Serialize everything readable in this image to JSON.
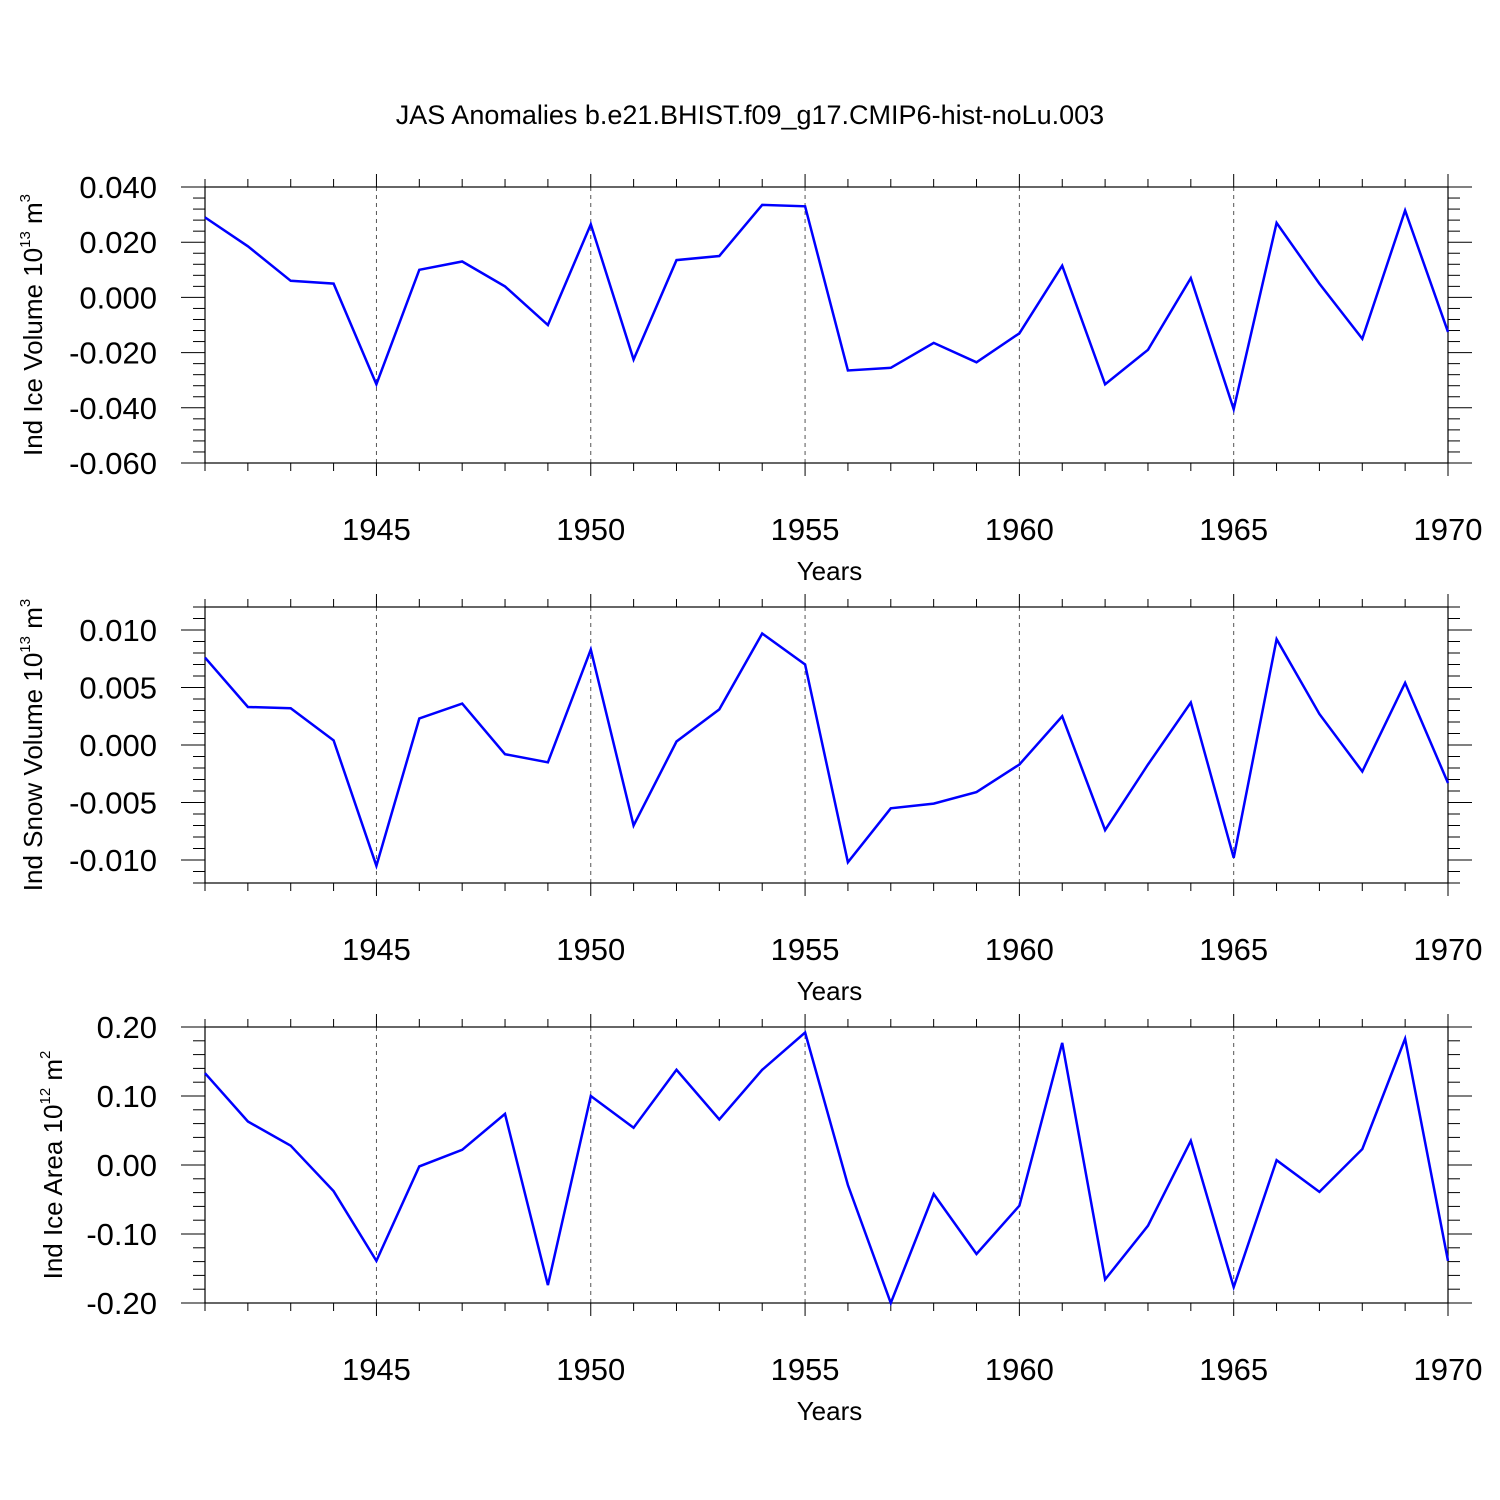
{
  "title": "JAS Anomalies b.e21.BHIST.f09_g17.CMIP6-hist-noLu.003",
  "colors": {
    "line": "#0000ff",
    "axis": "#000000",
    "grid": "#555555"
  },
  "chart_data": [
    {
      "type": "line",
      "ylabel": "Ind Ice Volume 10",
      "ylabel_exp": "13",
      "ylabel_unit": " m",
      "ylabel_unit_exp": "3",
      "xlabel": "Years",
      "xlim": [
        1941,
        1970
      ],
      "ylim": [
        -0.06,
        0.04
      ],
      "yticks": [
        0.04,
        0.02,
        0.0,
        -0.02,
        -0.04,
        -0.06
      ],
      "ytick_labels": [
        "0.040",
        "0.020",
        "0.000",
        "-0.020",
        "-0.040",
        "-0.060"
      ],
      "xticks": [
        1945,
        1950,
        1955,
        1960,
        1965,
        1970
      ],
      "xtick_labels": [
        "1945",
        "1950",
        "1955",
        "1960",
        "1965",
        "1970"
      ],
      "x": [
        1941,
        1942,
        1943,
        1944,
        1945,
        1946,
        1947,
        1948,
        1949,
        1950,
        1951,
        1952,
        1953,
        1954,
        1955,
        1956,
        1957,
        1958,
        1959,
        1960,
        1961,
        1962,
        1963,
        1964,
        1965,
        1966,
        1967,
        1968,
        1969,
        1970
      ],
      "values": [
        0.029,
        0.0185,
        0.006,
        0.005,
        -0.0315,
        0.01,
        0.013,
        0.004,
        -0.01,
        0.0265,
        -0.0225,
        0.0135,
        0.015,
        0.0335,
        0.033,
        -0.0265,
        -0.0255,
        -0.0165,
        -0.0235,
        -0.013,
        0.0115,
        -0.0315,
        -0.019,
        0.007,
        -0.0405,
        0.027,
        0.005,
        -0.015,
        0.0315,
        -0.0125
      ]
    },
    {
      "type": "line",
      "ylabel": "Ind Snow Volume 10",
      "ylabel_exp": "13",
      "ylabel_unit": " m",
      "ylabel_unit_exp": "3",
      "xlabel": "Years",
      "xlim": [
        1941,
        1970
      ],
      "ylim": [
        -0.012,
        0.012
      ],
      "yticks": [
        0.01,
        0.005,
        0.0,
        -0.005,
        -0.01
      ],
      "ytick_labels": [
        "0.010",
        "0.005",
        "0.000",
        "-0.005",
        "-0.010"
      ],
      "xticks": [
        1945,
        1950,
        1955,
        1960,
        1965,
        1970
      ],
      "xtick_labels": [
        "1945",
        "1950",
        "1955",
        "1960",
        "1965",
        "1970"
      ],
      "x": [
        1941,
        1942,
        1943,
        1944,
        1945,
        1946,
        1947,
        1948,
        1949,
        1950,
        1951,
        1952,
        1953,
        1954,
        1955,
        1956,
        1957,
        1958,
        1959,
        1960,
        1961,
        1962,
        1963,
        1964,
        1965,
        1966,
        1967,
        1968,
        1969,
        1970
      ],
      "values": [
        0.0076,
        0.0033,
        0.0032,
        0.0004,
        -0.0105,
        0.0023,
        0.0036,
        -0.0008,
        -0.0015,
        0.0083,
        -0.007,
        0.0003,
        0.0031,
        0.0097,
        0.007,
        -0.0102,
        -0.0055,
        -0.0051,
        -0.0041,
        -0.0017,
        0.0025,
        -0.0074,
        -0.0017,
        0.0037,
        -0.0098,
        0.0092,
        0.0027,
        -0.0023,
        0.0054,
        -0.0033
      ]
    },
    {
      "type": "line",
      "ylabel": "Ind Ice Area 10",
      "ylabel_exp": "12",
      "ylabel_unit": " m",
      "ylabel_unit_exp": "2",
      "xlabel": "Years",
      "xlim": [
        1941,
        1970
      ],
      "ylim": [
        -0.2,
        0.2
      ],
      "yticks": [
        0.2,
        0.1,
        0.0,
        -0.1,
        -0.2
      ],
      "ytick_labels": [
        "0.20",
        "0.10",
        "0.00",
        "-0.10",
        "-0.20"
      ],
      "xticks": [
        1945,
        1950,
        1955,
        1960,
        1965,
        1970
      ],
      "xtick_labels": [
        "1945",
        "1950",
        "1955",
        "1960",
        "1965",
        "1970"
      ],
      "x": [
        1941,
        1942,
        1943,
        1944,
        1945,
        1946,
        1947,
        1948,
        1949,
        1950,
        1951,
        1952,
        1953,
        1954,
        1955,
        1956,
        1957,
        1958,
        1959,
        1960,
        1961,
        1962,
        1963,
        1964,
        1965,
        1966,
        1967,
        1968,
        1969,
        1970
      ],
      "values": [
        0.133,
        0.063,
        0.028,
        -0.038,
        -0.139,
        -0.002,
        0.022,
        0.074,
        -0.174,
        0.1,
        0.054,
        0.138,
        0.066,
        0.138,
        0.192,
        -0.029,
        -0.2,
        -0.042,
        -0.129,
        -0.059,
        0.177,
        -0.166,
        -0.088,
        0.035,
        -0.177,
        0.007,
        -0.039,
        0.023,
        0.183,
        -0.139
      ]
    }
  ]
}
